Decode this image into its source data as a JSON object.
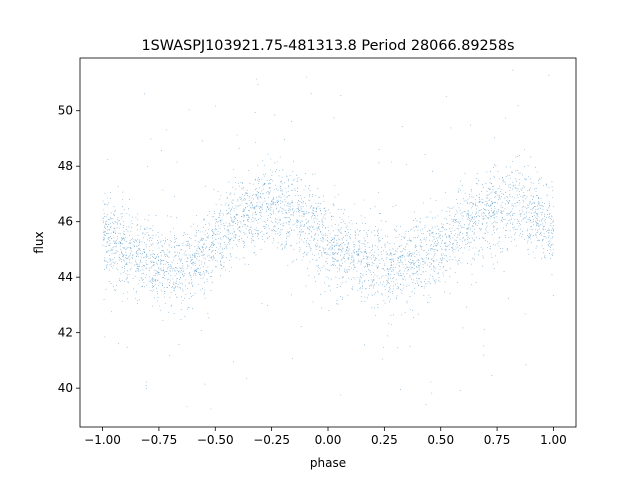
{
  "chart_data": {
    "type": "scatter",
    "title": "1SWASPJ103921.75-481313.8 Period 28066.89258s",
    "xlabel": "phase",
    "ylabel": "flux",
    "xlim": [
      -1.1,
      1.1
    ],
    "ylim": [
      38.6,
      51.9
    ],
    "xticks": [
      -1.0,
      -0.75,
      -0.5,
      -0.25,
      0.0,
      0.25,
      0.5,
      0.75,
      1.0
    ],
    "xtick_labels": [
      "−1.00",
      "−0.75",
      "−0.50",
      "−0.25",
      "0.00",
      "0.25",
      "0.50",
      "0.75",
      "1.00"
    ],
    "yticks": [
      40,
      42,
      44,
      46,
      48,
      50
    ],
    "ytick_labels": [
      "40",
      "42",
      "44",
      "46",
      "48",
      "50"
    ],
    "grid": false,
    "legend": "none",
    "point_color": "#1f77b4",
    "series": [
      {
        "phase": [
          -1.0,
          -0.95,
          -0.9,
          -0.85,
          -0.8,
          -0.75,
          -0.7,
          -0.65,
          -0.6,
          -0.55,
          -0.5,
          -0.45,
          -0.4,
          -0.35,
          -0.3,
          -0.25,
          -0.2,
          -0.15,
          -0.1,
          -0.05,
          0.0,
          0.05,
          0.1,
          0.15,
          0.2,
          0.25,
          0.3,
          0.35,
          0.4,
          0.45,
          0.5,
          0.55,
          0.6,
          0.65,
          0.7,
          0.75,
          0.8,
          0.85,
          0.9,
          0.95,
          1.0
        ],
        "flux_mean": [
          45.6,
          45.3,
          45.0,
          44.8,
          44.6,
          44.45,
          44.4,
          44.45,
          44.6,
          44.85,
          45.2,
          45.65,
          46.0,
          46.3,
          46.5,
          46.6,
          46.5,
          46.3,
          46.0,
          45.6,
          45.2,
          44.9,
          44.7,
          44.55,
          44.45,
          44.4,
          44.4,
          44.5,
          44.65,
          44.9,
          45.2,
          45.5,
          45.8,
          46.1,
          46.35,
          46.5,
          46.55,
          46.5,
          46.3,
          46.0,
          45.6
        ],
        "flux_spread": 0.75,
        "point_count": 19000
      }
    ]
  }
}
